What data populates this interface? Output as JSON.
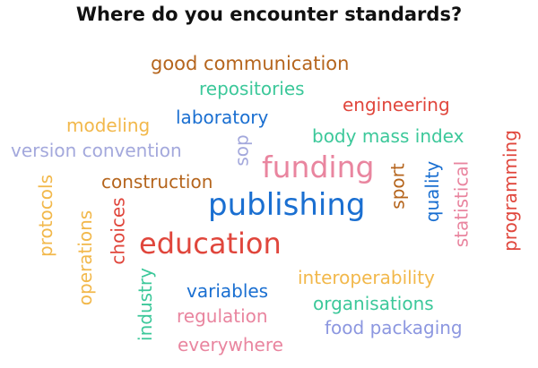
{
  "title": "Where do you encounter standards?",
  "colors": {
    "brown": "#b5651d",
    "teal": "#3cc89a",
    "red": "#e0463c",
    "yellow": "#f2b84b",
    "blue": "#1a6fd1",
    "lavender": "#a3a8dc",
    "pink": "#e9859f",
    "periwinkle": "#8c97e0"
  },
  "words": [
    {
      "text": "good communication",
      "color": "#b5651d"
    },
    {
      "text": "repositories",
      "color": "#3cc89a"
    },
    {
      "text": "engineering",
      "color": "#e0463c"
    },
    {
      "text": "modeling",
      "color": "#f2b84b"
    },
    {
      "text": "laboratory",
      "color": "#1a6fd1"
    },
    {
      "text": "body mass index",
      "color": "#3cc89a"
    },
    {
      "text": "version convention",
      "color": "#a3a8dc"
    },
    {
      "text": "sop",
      "color": "#a3a8dc"
    },
    {
      "text": "funding",
      "color": "#e9859f"
    },
    {
      "text": "programming",
      "color": "#e0463c"
    },
    {
      "text": "construction",
      "color": "#b5651d"
    },
    {
      "text": "sport",
      "color": "#b5651d"
    },
    {
      "text": "quality",
      "color": "#1a6fd1"
    },
    {
      "text": "statistical",
      "color": "#e9859f"
    },
    {
      "text": "protocols",
      "color": "#f2b84b"
    },
    {
      "text": "publishing",
      "color": "#1a6fd1"
    },
    {
      "text": "operations",
      "color": "#f2b84b"
    },
    {
      "text": "choices",
      "color": "#e0463c"
    },
    {
      "text": "education",
      "color": "#e0463c"
    },
    {
      "text": "interoperability",
      "color": "#f2b84b"
    },
    {
      "text": "industry",
      "color": "#3cc89a"
    },
    {
      "text": "variables",
      "color": "#1a6fd1"
    },
    {
      "text": "organisations",
      "color": "#3cc89a"
    },
    {
      "text": "regulation",
      "color": "#e9859f"
    },
    {
      "text": "food packaging",
      "color": "#8c97e0"
    },
    {
      "text": "everywhere",
      "color": "#e9859f"
    }
  ]
}
